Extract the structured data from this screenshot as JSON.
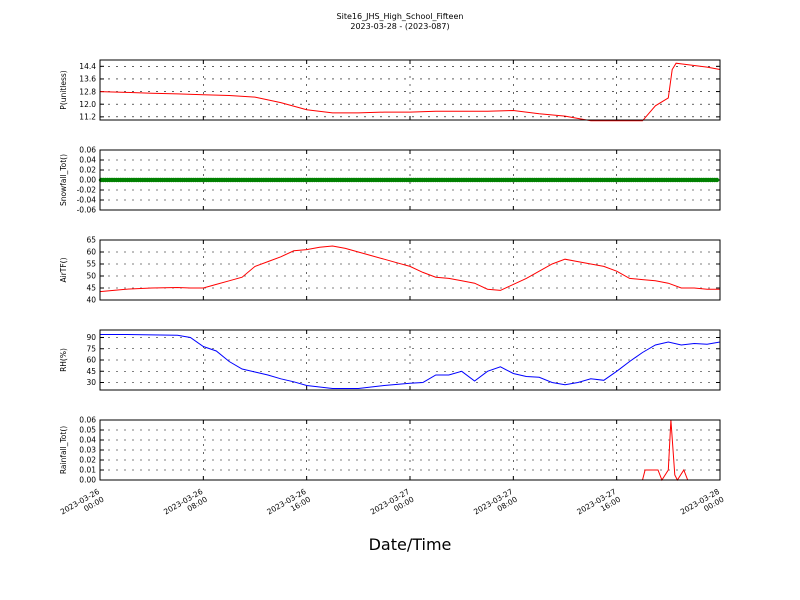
{
  "title_line1": "Site16_JHS_High_School_Fifteen",
  "title_line2": "2023-03-28 - (2023-087)",
  "xlabel": "Date/Time",
  "x_ticks": [
    "2023-03-26 00:00",
    "2023-03-26 08:00",
    "2023-03-26 16:00",
    "2023-03-27 00:00",
    "2023-03-27 08:00",
    "2023-03-27 16:00",
    "2023-03-28 00:00"
  ],
  "x_range_hours": [
    0,
    48
  ],
  "chart_data": [
    {
      "type": "line",
      "ylabel": "P(unitless)",
      "ylim": [
        11.0,
        14.8
      ],
      "yticks": [
        "11.2",
        "12.0",
        "12.8",
        "13.6",
        "14.4"
      ],
      "grid": true,
      "color": "#ff0000",
      "x_hours": [
        0,
        2,
        4,
        6,
        8,
        10,
        12,
        14,
        16,
        18,
        20,
        22,
        24,
        26,
        28,
        30,
        32,
        34,
        36,
        38,
        40,
        42,
        43,
        44,
        44.3,
        44.6,
        45,
        46,
        47,
        48
      ],
      "values": [
        12.8,
        12.75,
        12.7,
        12.65,
        12.6,
        12.55,
        12.45,
        12.1,
        11.65,
        11.45,
        11.45,
        11.5,
        11.5,
        11.55,
        11.55,
        11.55,
        11.6,
        11.4,
        11.25,
        10.95,
        10.95,
        10.95,
        11.9,
        12.4,
        14.2,
        14.6,
        14.55,
        14.45,
        14.35,
        14.2
      ]
    },
    {
      "type": "scatter",
      "ylabel": "Snowfall_Tot()",
      "ylim": [
        -0.06,
        0.06
      ],
      "yticks": [
        "-0.06",
        "-0.04",
        "-0.02",
        "0.00",
        "0.02",
        "0.04",
        "0.06"
      ],
      "grid": true,
      "color": "#008000",
      "x_hours": [
        0,
        48
      ],
      "values": [
        0,
        0
      ]
    },
    {
      "type": "line",
      "ylabel": "AirTF()",
      "ylim": [
        40,
        65
      ],
      "yticks": [
        "40",
        "45",
        "50",
        "55",
        "60",
        "65"
      ],
      "grid": true,
      "color": "#ff0000",
      "x_hours": [
        0,
        2,
        4,
        6,
        7,
        8,
        9,
        10,
        11,
        12,
        13,
        14,
        15,
        16,
        17,
        18,
        19,
        20,
        21,
        22,
        23,
        24,
        25,
        26,
        27,
        28,
        29,
        30,
        31,
        32,
        33,
        34,
        35,
        36,
        37,
        38,
        39,
        40,
        41,
        42,
        43,
        44,
        45,
        46,
        47,
        48
      ],
      "values": [
        43.5,
        44.5,
        45,
        45.2,
        45,
        45,
        46.5,
        48,
        49.5,
        54,
        56,
        58,
        60.5,
        61,
        62,
        62.5,
        61.5,
        60,
        58.5,
        57,
        55.5,
        54,
        51.5,
        49.5,
        49,
        48,
        47,
        44.5,
        44,
        46.5,
        49,
        52,
        55,
        57,
        56,
        55,
        54,
        52,
        49,
        48.5,
        48,
        47,
        45,
        45,
        44.5,
        44.5
      ]
    },
    {
      "type": "line",
      "ylabel": "RH(%)",
      "ylim": [
        20,
        100
      ],
      "yticks": [
        "30",
        "45",
        "60",
        "75",
        "90"
      ],
      "grid": true,
      "color": "#0000ff",
      "x_hours": [
        0,
        2,
        4,
        6,
        7,
        8,
        9,
        10,
        11,
        12,
        13,
        14,
        15,
        16,
        17,
        18,
        20,
        22,
        24,
        25,
        26,
        27,
        28,
        29,
        30,
        31,
        32,
        33,
        34,
        35,
        36,
        37,
        38,
        39,
        40,
        41,
        42,
        43,
        44,
        45,
        46,
        47,
        48
      ],
      "values": [
        94,
        94,
        93.5,
        93,
        90,
        78,
        72,
        58,
        48,
        44,
        40,
        35,
        31,
        26,
        24,
        22,
        22,
        26,
        29,
        30,
        40,
        40,
        45,
        32,
        45,
        51,
        42,
        38,
        37,
        30,
        27,
        30,
        35,
        33,
        45,
        58,
        70,
        80,
        84,
        80,
        82,
        81,
        84
      ]
    },
    {
      "type": "line",
      "ylabel": "Rainfall_Tot()",
      "ylim": [
        0,
        0.06
      ],
      "yticks": [
        "0.00",
        "0.01",
        "0.02",
        "0.03",
        "0.04",
        "0.05",
        "0.06"
      ],
      "grid": true,
      "color": "#ff0000",
      "x_hours": [
        0,
        42,
        42.2,
        43.2,
        43.5,
        44.0,
        44.2,
        44.5,
        44.7,
        45.2,
        45.5,
        48
      ],
      "values": [
        0,
        0,
        0.01,
        0.01,
        0,
        0.01,
        0.06,
        0.005,
        0,
        0.01,
        0,
        0
      ]
    }
  ]
}
